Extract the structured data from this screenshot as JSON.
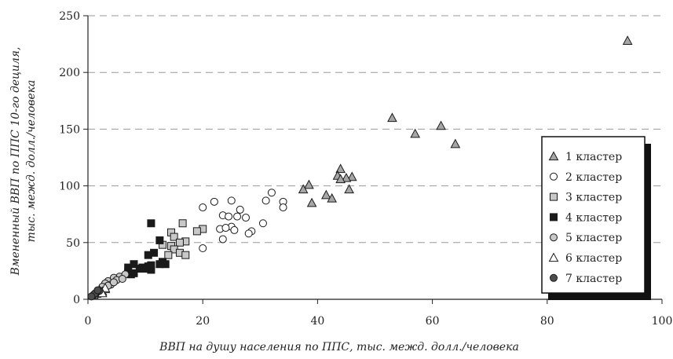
{
  "chart_data": {
    "type": "scatter",
    "title": "",
    "xlabel": "ВВП на душу населения по ППС, тыс. межд. долл./человека",
    "ylabel_line1": "Вмененный ВВП по ППС 10-го дециля,",
    "ylabel_line2": "тыс. межд. долл./человека",
    "xlim": [
      0,
      100
    ],
    "ylim": [
      0,
      250
    ],
    "x_ticks": [
      "0",
      "20",
      "40",
      "60",
      "80",
      "100"
    ],
    "y_ticks": [
      "0",
      "50",
      "100",
      "150",
      "200",
      "250"
    ],
    "grid": "horizontal-dashed",
    "legend_position": "right",
    "series": [
      {
        "name": "1 кластер",
        "marker": "triangle",
        "fill": "#a6a6a6",
        "points": [
          [
            94,
            228
          ],
          [
            53,
            160
          ],
          [
            61.5,
            153
          ],
          [
            57,
            146
          ],
          [
            64,
            137
          ],
          [
            44,
            115
          ],
          [
            43.5,
            109
          ],
          [
            46,
            108
          ],
          [
            45,
            107
          ],
          [
            38.5,
            101
          ],
          [
            37.5,
            97
          ],
          [
            45.5,
            97
          ],
          [
            41.5,
            92
          ],
          [
            42.5,
            89
          ],
          [
            39,
            85
          ],
          [
            44,
            106
          ]
        ]
      },
      {
        "name": "2 кластер",
        "marker": "circle",
        "fill": "#ffffff",
        "points": [
          [
            32,
            94
          ],
          [
            31,
            87
          ],
          [
            25,
            87
          ],
          [
            34,
            86
          ],
          [
            22,
            86
          ],
          [
            34,
            81
          ],
          [
            20,
            81
          ],
          [
            26.5,
            79
          ],
          [
            23.5,
            74
          ],
          [
            26,
            73
          ],
          [
            24.5,
            73
          ],
          [
            27.5,
            72
          ],
          [
            30.5,
            67
          ],
          [
            23,
            62
          ],
          [
            25,
            64
          ],
          [
            24,
            63
          ],
          [
            25.5,
            61
          ],
          [
            28.5,
            60
          ],
          [
            28,
            58
          ],
          [
            23.5,
            53
          ],
          [
            20,
            45
          ]
        ]
      },
      {
        "name": "3 кластер",
        "marker": "square",
        "fill": "#c8c8c8",
        "points": [
          [
            16.5,
            67
          ],
          [
            20,
            62
          ],
          [
            19,
            60
          ],
          [
            14.5,
            59
          ],
          [
            15,
            55
          ],
          [
            17,
            51
          ],
          [
            16,
            50
          ],
          [
            13,
            48
          ],
          [
            14.5,
            47
          ],
          [
            15,
            44
          ],
          [
            16,
            41
          ],
          [
            17,
            39
          ],
          [
            14,
            39
          ]
        ]
      },
      {
        "name": "4 кластер",
        "marker": "square",
        "fill": "#1a1a1a",
        "points": [
          [
            11,
            67
          ],
          [
            12.5,
            52
          ],
          [
            11.5,
            41
          ],
          [
            10.5,
            39
          ],
          [
            13,
            33
          ],
          [
            12.5,
            31
          ],
          [
            13.5,
            31
          ],
          [
            8,
            31
          ],
          [
            10.5,
            29
          ],
          [
            9.5,
            28
          ],
          [
            9,
            27
          ],
          [
            7,
            28
          ],
          [
            11,
            26
          ],
          [
            10,
            27
          ],
          [
            7,
            24
          ],
          [
            8,
            23
          ],
          [
            7.5,
            22
          ],
          [
            11,
            30
          ]
        ]
      },
      {
        "name": "5 кластер",
        "marker": "circle",
        "fill": "#c8c8c8",
        "points": [
          [
            3.5,
            16
          ],
          [
            5.5,
            20
          ],
          [
            6.5,
            22
          ],
          [
            4.5,
            19
          ],
          [
            3,
            14
          ],
          [
            4,
            13
          ],
          [
            2.5,
            11
          ],
          [
            5,
            17
          ],
          [
            6,
            18
          ],
          [
            3.5,
            12
          ],
          [
            4.5,
            15
          ]
        ]
      },
      {
        "name": "6 кластер",
        "marker": "triangle",
        "fill": "#ffffff",
        "points": [
          [
            1.5,
            5
          ],
          [
            2,
            6
          ],
          [
            2.5,
            7
          ],
          [
            3,
            9
          ],
          [
            1,
            4
          ],
          [
            2,
            8
          ],
          [
            3,
            10
          ],
          [
            2.5,
            5.5
          ]
        ]
      },
      {
        "name": "7 кластер",
        "marker": "circle",
        "fill": "#4d4d4d",
        "points": [
          [
            0.8,
            3
          ],
          [
            1,
            4
          ],
          [
            1.5,
            6
          ],
          [
            2,
            7.5
          ],
          [
            1.2,
            5
          ],
          [
            0.6,
            2.5
          ],
          [
            1.7,
            8
          ]
        ]
      }
    ]
  }
}
